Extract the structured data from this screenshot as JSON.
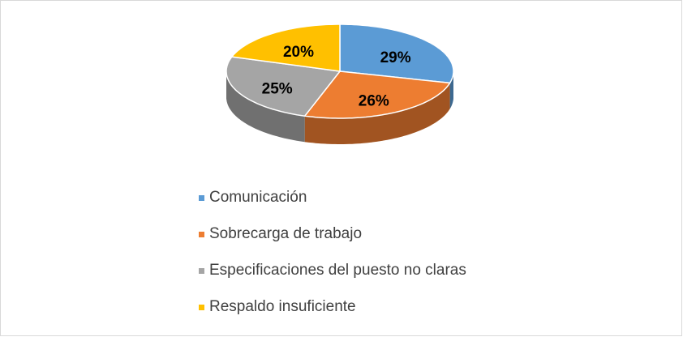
{
  "chart_data": {
    "type": "pie",
    "categories": [
      "Comunicación",
      "Sobrecarga de trabajo",
      "Especificaciones del puesto no claras",
      "Respaldo insuficiente"
    ],
    "values": [
      29,
      26,
      25,
      20
    ],
    "value_labels": [
      "29%",
      "26%",
      "25%",
      "20%"
    ],
    "colors": [
      "#5b9bd5",
      "#ed7d31",
      "#a5a5a5",
      "#ffc000"
    ],
    "legend": "bottom"
  }
}
